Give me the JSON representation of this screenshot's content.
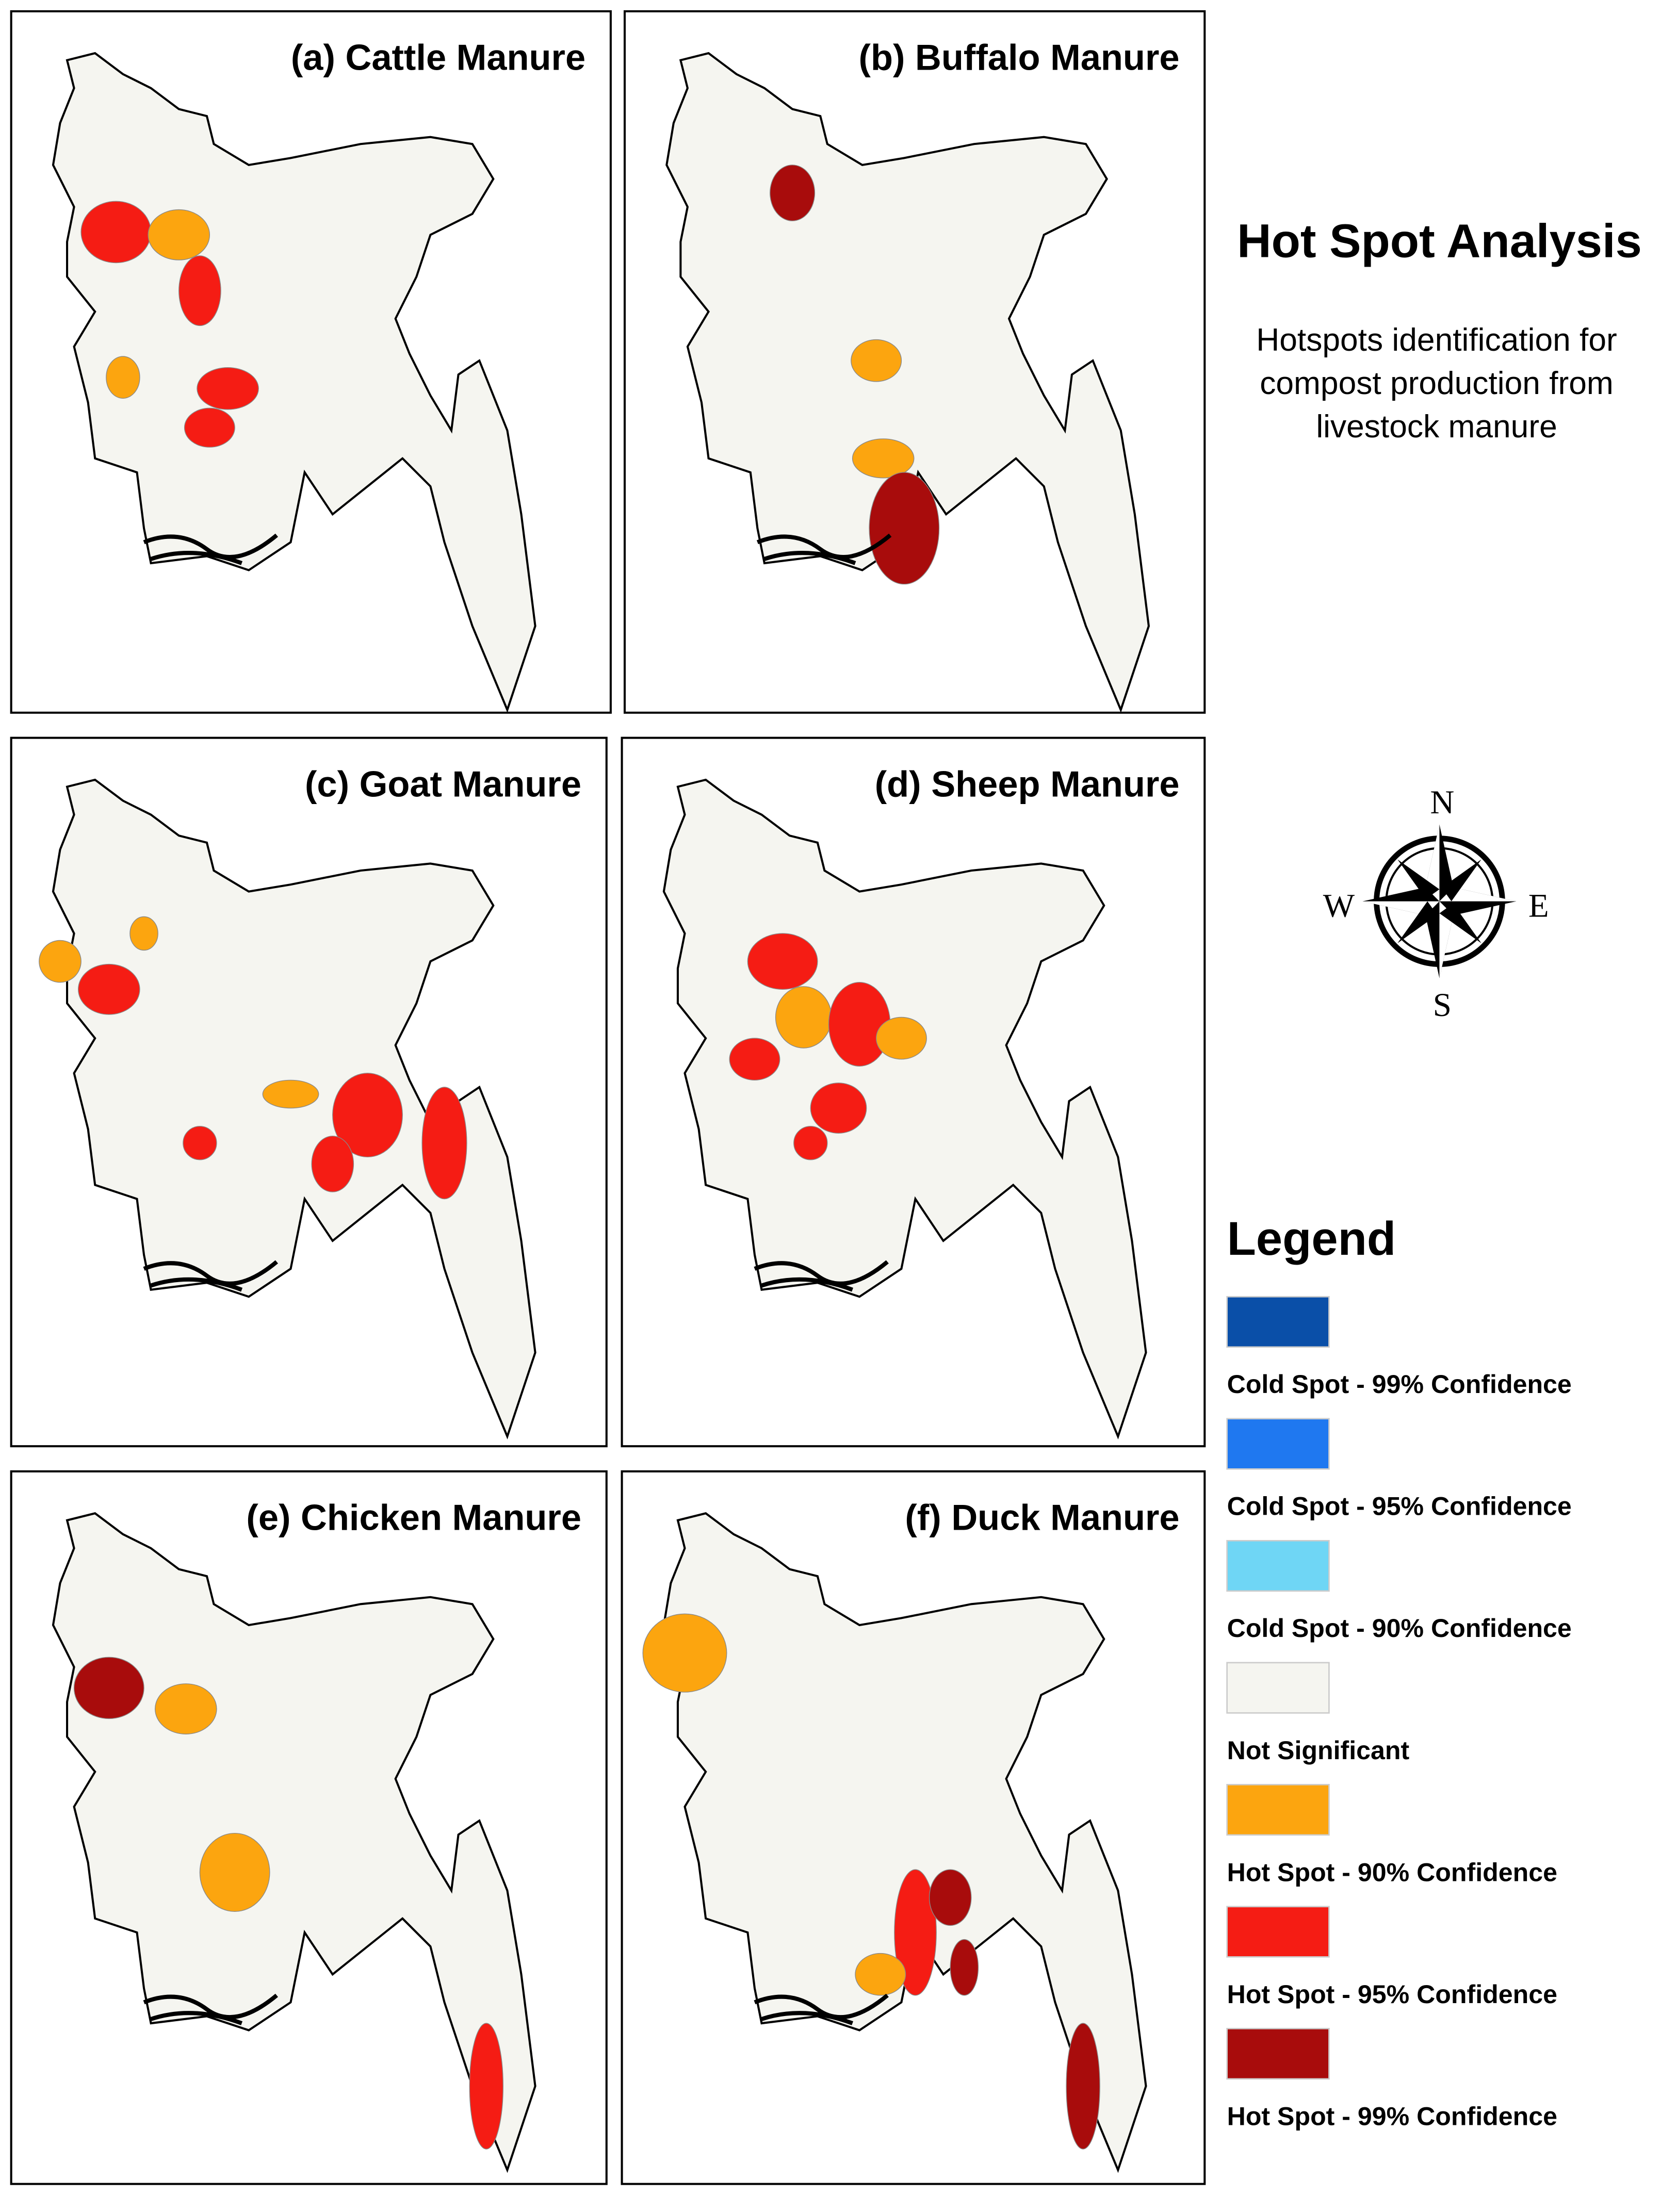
{
  "title": "Hot Spot Analysis",
  "subtitle": [
    "Hotspots identification for",
    "compost production from",
    "livestock manure"
  ],
  "panels": [
    {
      "title": "(a) Cattle Manure"
    },
    {
      "title": "(b) Buffalo Manure"
    },
    {
      "title": "(c) Goat Manure"
    },
    {
      "title": "(d) Sheep Manure"
    },
    {
      "title": "(e) Chicken Manure"
    },
    {
      "title": "(f) Duck Manure"
    }
  ],
  "compass": {
    "n": "N",
    "w": "W",
    "e": "E",
    "s": "S"
  },
  "legend": {
    "title": "Legend",
    "items": [
      {
        "label": "Cold Spot - 99% Confidence",
        "color": "#0a4fa8"
      },
      {
        "label": "Cold Spot - 95% Confidence",
        "color": "#1f78f0"
      },
      {
        "label": "Cold Spot - 90% Confidence",
        "color": "#6fd6f5"
      },
      {
        "label": "Not Significant",
        "color": "#f5f5f0"
      },
      {
        "label": "Hot Spot - 90% Confidence",
        "color": "#fca50f"
      },
      {
        "label": "Hot Spot - 95% Confidence",
        "color": "#f51c14"
      },
      {
        "label": "Hot Spot - 99% Confidence",
        "color": "#a80c0c"
      }
    ]
  }
}
